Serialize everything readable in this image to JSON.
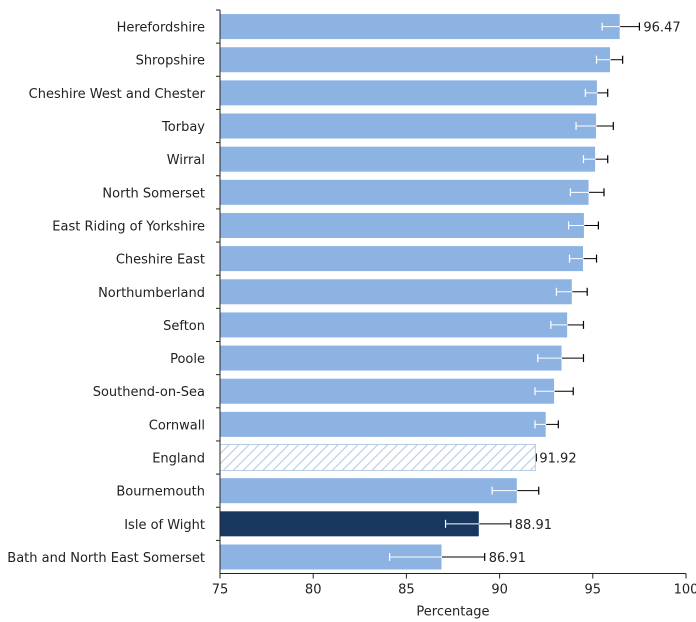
{
  "chart_data": {
    "type": "bar",
    "orientation": "horizontal",
    "xlabel": "Percentage",
    "xlim": [
      75,
      100
    ],
    "xticks": [
      75,
      80,
      85,
      90,
      95,
      100
    ],
    "categories": [
      "Herefordshire",
      "Shropshire",
      "Cheshire West and Chester",
      "Torbay",
      "Wirral",
      "North Somerset",
      "East Riding of Yorkshire",
      "Cheshire East",
      "Northumberland",
      "Sefton",
      "Poole",
      "Southend-on-Sea",
      "Cornwall",
      "England",
      "Bournemouth",
      "Isle of Wight",
      "Bath and North East Somerset"
    ],
    "values": [
      96.47,
      95.95,
      95.25,
      95.2,
      95.15,
      94.8,
      94.55,
      94.5,
      93.9,
      93.65,
      93.35,
      92.95,
      92.5,
      91.92,
      90.95,
      88.91,
      86.91
    ],
    "ci_low": [
      95.5,
      95.2,
      94.6,
      94.1,
      94.5,
      93.8,
      93.7,
      93.75,
      93.05,
      92.75,
      92.05,
      91.9,
      91.9,
      91.92,
      89.6,
      87.1,
      84.1
    ],
    "ci_high": [
      97.5,
      96.6,
      95.8,
      96.1,
      95.8,
      95.6,
      95.3,
      95.2,
      94.7,
      94.5,
      94.5,
      93.95,
      93.15,
      91.92,
      92.1,
      90.6,
      89.2
    ],
    "data_labels": {
      "Herefordshire": "96.47",
      "England": "91.92",
      "Isle of Wight": "88.91",
      "Bath and North East Somerset": "86.91"
    },
    "styles": {
      "Herefordshire": "default",
      "England": "hatched",
      "Isle of Wight": "highlight"
    },
    "colors": {
      "default": "#8db3e2",
      "highlight": "#17375e",
      "hatch": "#b8cce4",
      "axis": "#222222"
    },
    "grid": false,
    "legend": "none"
  }
}
